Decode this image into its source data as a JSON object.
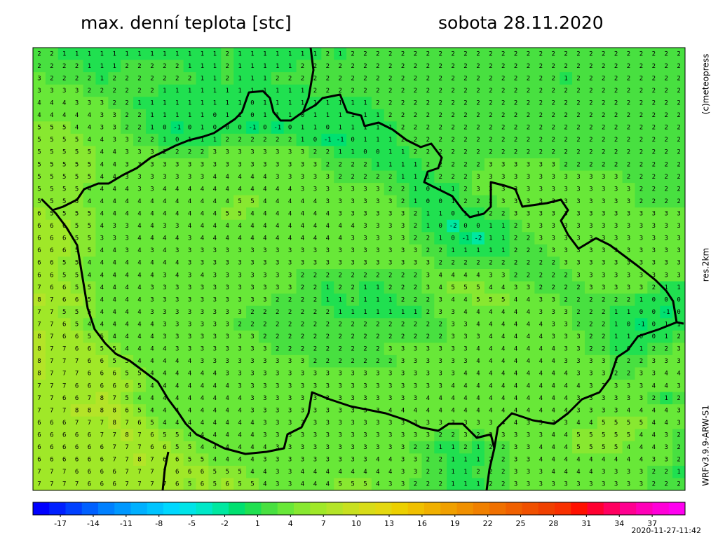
{
  "header": {
    "title": "max. denní teplota [stc]",
    "date": "sobota 28.11.2020"
  },
  "side_labels": {
    "copyright": "(c)meteopress",
    "resolution": "res.2km",
    "model": "WRFv3.9.9-ARW-S1"
  },
  "timestamp": "2020-11-27-11:42",
  "colorbar": {
    "lim": [
      -19.5,
      40
    ],
    "ticks": [
      -17,
      -14,
      -11,
      -8,
      -5,
      -2,
      1,
      4,
      7,
      10,
      13,
      16,
      19,
      22,
      25,
      28,
      31,
      34,
      37
    ],
    "colors": [
      "#0000ff",
      "#0020ff",
      "#0040ff",
      "#0060ff",
      "#0080ff",
      "#0098ff",
      "#00b0ff",
      "#00c4ff",
      "#00d8ff",
      "#00e4e8",
      "#00e8c8",
      "#00e8a0",
      "#00e070",
      "#20e050",
      "#48e040",
      "#68e838",
      "#88e830",
      "#a0e828",
      "#b4e428",
      "#c8e020",
      "#d8dc18",
      "#e4d810",
      "#ecd000",
      "#f0c000",
      "#f0b000",
      "#f0a000",
      "#f09000",
      "#f08000",
      "#f07000",
      "#f06000",
      "#f05000",
      "#f04000",
      "#f83000",
      "#ff1000",
      "#ff0030",
      "#ff0060",
      "#ff0090",
      "#ff00b8",
      "#ff00d8",
      "#ff00f0"
    ]
  },
  "grid": [
    [
      2,
      2,
      1,
      1,
      1,
      1,
      1,
      1,
      1,
      1,
      1,
      1,
      1,
      1,
      1,
      2,
      1,
      1,
      1,
      1,
      1,
      1,
      1,
      2,
      1,
      2,
      2,
      2,
      2,
      2,
      2,
      2,
      2,
      2,
      2,
      2,
      2,
      2,
      2,
      2,
      2,
      2,
      2,
      2,
      2,
      2,
      2,
      2,
      2,
      2,
      2,
      2
    ],
    [
      2,
      2,
      2,
      2,
      1,
      1,
      1,
      2,
      2,
      2,
      2,
      2,
      1,
      1,
      1,
      2,
      1,
      1,
      1,
      1,
      1,
      2,
      2,
      2,
      2,
      2,
      2,
      2,
      2,
      2,
      2,
      2,
      2,
      2,
      2,
      2,
      2,
      2,
      2,
      2,
      2,
      2,
      2,
      2,
      2,
      2,
      2,
      2,
      2,
      2,
      2,
      2
    ],
    [
      3,
      2,
      2,
      2,
      2,
      1,
      2,
      2,
      2,
      2,
      2,
      2,
      2,
      1,
      1,
      2,
      1,
      1,
      1,
      2,
      2,
      2,
      2,
      2,
      2,
      2,
      2,
      2,
      2,
      2,
      2,
      2,
      2,
      2,
      2,
      2,
      2,
      2,
      2,
      2,
      2,
      2,
      1,
      2,
      2,
      2,
      2,
      2,
      2,
      2,
      2,
      2
    ],
    [
      3,
      3,
      3,
      3,
      2,
      2,
      2,
      2,
      2,
      2,
      1,
      1,
      1,
      1,
      1,
      1,
      1,
      1,
      1,
      1,
      1,
      1,
      2,
      2,
      2,
      2,
      2,
      2,
      2,
      2,
      2,
      2,
      2,
      2,
      2,
      2,
      2,
      2,
      2,
      2,
      2,
      2,
      2,
      2,
      2,
      2,
      2,
      2,
      2,
      2,
      2,
      2
    ],
    [
      4,
      4,
      4,
      3,
      3,
      3,
      2,
      2,
      1,
      1,
      1,
      1,
      1,
      1,
      1,
      1,
      1,
      0,
      1,
      1,
      1,
      1,
      1,
      1,
      1,
      1,
      1,
      2,
      2,
      2,
      2,
      2,
      2,
      2,
      2,
      2,
      2,
      2,
      2,
      2,
      2,
      2,
      2,
      2,
      2,
      2,
      2,
      2,
      2,
      2,
      2,
      2
    ],
    [
      4,
      4,
      4,
      4,
      4,
      3,
      3,
      2,
      2,
      1,
      1,
      1,
      1,
      1,
      0,
      1,
      1,
      0,
      1,
      1,
      1,
      0,
      1,
      1,
      1,
      1,
      1,
      1,
      2,
      2,
      2,
      2,
      2,
      2,
      2,
      2,
      2,
      2,
      2,
      2,
      2,
      2,
      2,
      2,
      2,
      2,
      2,
      2,
      2,
      2,
      2,
      2
    ],
    [
      5,
      5,
      5,
      4,
      4,
      3,
      3,
      2,
      2,
      1,
      0,
      -1,
      0,
      1,
      0,
      0,
      0,
      -1,
      0,
      -1,
      0,
      1,
      1,
      0,
      1,
      1,
      1,
      1,
      1,
      2,
      2,
      2,
      2,
      2,
      2,
      2,
      2,
      2,
      2,
      2,
      2,
      2,
      2,
      2,
      2,
      2,
      2,
      2,
      2,
      2,
      2,
      2
    ],
    [
      5,
      5,
      5,
      5,
      4,
      4,
      3,
      3,
      2,
      2,
      1,
      0,
      1,
      1,
      1,
      2,
      2,
      2,
      2,
      2,
      2,
      1,
      0,
      -1,
      -1,
      0,
      1,
      1,
      1,
      2,
      2,
      2,
      2,
      2,
      2,
      2,
      2,
      2,
      2,
      2,
      2,
      2,
      2,
      2,
      2,
      2,
      2,
      2,
      2,
      2,
      2,
      2
    ],
    [
      5,
      5,
      5,
      5,
      5,
      4,
      4,
      3,
      3,
      3,
      2,
      2,
      2,
      2,
      3,
      3,
      3,
      3,
      3,
      3,
      3,
      3,
      2,
      2,
      1,
      1,
      0,
      0,
      1,
      1,
      2,
      2,
      2,
      2,
      2,
      2,
      2,
      2,
      2,
      2,
      2,
      2,
      2,
      2,
      2,
      2,
      2,
      2,
      2,
      2,
      2,
      2
    ],
    [
      5,
      5,
      5,
      5,
      5,
      4,
      4,
      3,
      3,
      3,
      3,
      3,
      3,
      3,
      3,
      3,
      3,
      3,
      3,
      3,
      3,
      3,
      3,
      2,
      2,
      2,
      2,
      1,
      1,
      1,
      1,
      2,
      2,
      2,
      2,
      2,
      3,
      3,
      3,
      3,
      3,
      3,
      2,
      2,
      2,
      2,
      2,
      2,
      2,
      2,
      2,
      2
    ],
    [
      5,
      5,
      5,
      5,
      5,
      4,
      4,
      3,
      3,
      3,
      3,
      3,
      3,
      3,
      4,
      4,
      4,
      4,
      4,
      3,
      3,
      3,
      3,
      3,
      2,
      2,
      2,
      2,
      2,
      1,
      1,
      1,
      2,
      2,
      2,
      3,
      3,
      3,
      3,
      3,
      3,
      3,
      3,
      3,
      3,
      3,
      3,
      2,
      2,
      2,
      2,
      2
    ],
    [
      5,
      5,
      5,
      5,
      4,
      4,
      4,
      4,
      3,
      3,
      4,
      4,
      4,
      4,
      4,
      4,
      4,
      4,
      4,
      4,
      4,
      3,
      3,
      3,
      3,
      3,
      3,
      3,
      2,
      2,
      1,
      0,
      1,
      1,
      2,
      3,
      3,
      3,
      3,
      3,
      3,
      3,
      3,
      3,
      3,
      3,
      3,
      3,
      2,
      2,
      2,
      2
    ],
    [
      5,
      5,
      5,
      5,
      4,
      4,
      4,
      4,
      4,
      4,
      4,
      4,
      4,
      4,
      4,
      4,
      5,
      5,
      4,
      4,
      4,
      4,
      4,
      3,
      3,
      3,
      3,
      3,
      3,
      2,
      1,
      0,
      0,
      1,
      2,
      2,
      2,
      3,
      3,
      3,
      3,
      3,
      3,
      3,
      3,
      3,
      3,
      3,
      2,
      2,
      2,
      2
    ],
    [
      6,
      5,
      5,
      5,
      5,
      4,
      4,
      4,
      4,
      4,
      4,
      4,
      4,
      4,
      4,
      5,
      5,
      4,
      4,
      4,
      4,
      4,
      4,
      4,
      3,
      3,
      3,
      3,
      3,
      3,
      2,
      1,
      1,
      0,
      1,
      1,
      2,
      2,
      3,
      3,
      3,
      3,
      3,
      3,
      3,
      3,
      3,
      3,
      3,
      3,
      3,
      3
    ],
    [
      6,
      6,
      6,
      5,
      5,
      4,
      3,
      3,
      4,
      4,
      3,
      3,
      4,
      4,
      4,
      4,
      4,
      4,
      4,
      4,
      4,
      4,
      4,
      4,
      4,
      4,
      3,
      3,
      3,
      3,
      2,
      1,
      0,
      -2,
      0,
      0,
      1,
      1,
      2,
      3,
      3,
      3,
      3,
      3,
      3,
      3,
      3,
      3,
      3,
      3,
      3,
      3
    ],
    [
      6,
      6,
      6,
      5,
      5,
      3,
      3,
      3,
      4,
      4,
      4,
      4,
      3,
      4,
      4,
      4,
      4,
      4,
      4,
      4,
      4,
      4,
      4,
      4,
      4,
      3,
      3,
      3,
      3,
      3,
      2,
      2,
      1,
      0,
      -1,
      -2,
      1,
      1,
      2,
      2,
      3,
      3,
      3,
      3,
      3,
      3,
      3,
      3,
      3,
      3,
      3,
      3
    ],
    [
      6,
      6,
      6,
      5,
      5,
      4,
      4,
      3,
      4,
      3,
      4,
      3,
      3,
      3,
      3,
      3,
      3,
      3,
      3,
      3,
      3,
      3,
      3,
      3,
      3,
      3,
      3,
      3,
      3,
      3,
      3,
      2,
      2,
      1,
      1,
      1,
      1,
      1,
      2,
      2,
      2,
      3,
      3,
      3,
      3,
      3,
      3,
      3,
      3,
      3,
      3,
      3
    ],
    [
      6,
      6,
      5,
      5,
      4,
      4,
      4,
      4,
      4,
      4,
      4,
      4,
      3,
      3,
      3,
      3,
      3,
      3,
      3,
      3,
      3,
      3,
      3,
      3,
      3,
      3,
      3,
      3,
      3,
      3,
      3,
      3,
      2,
      2,
      2,
      2,
      2,
      2,
      2,
      2,
      2,
      2,
      3,
      3,
      3,
      3,
      3,
      3,
      3,
      3,
      3,
      3
    ],
    [
      6,
      6,
      5,
      5,
      4,
      4,
      4,
      4,
      4,
      4,
      3,
      4,
      3,
      4,
      3,
      3,
      3,
      3,
      3,
      3,
      3,
      2,
      2,
      2,
      2,
      2,
      2,
      2,
      2,
      2,
      2,
      3,
      4,
      4,
      4,
      4,
      3,
      3,
      2,
      2,
      2,
      2,
      2,
      3,
      3,
      3,
      3,
      3,
      3,
      3,
      3,
      3
    ],
    [
      7,
      6,
      6,
      5,
      5,
      4,
      4,
      4,
      4,
      3,
      3,
      3,
      3,
      3,
      3,
      3,
      3,
      3,
      3,
      3,
      3,
      2,
      2,
      1,
      2,
      2,
      1,
      1,
      2,
      2,
      2,
      3,
      4,
      5,
      5,
      5,
      4,
      4,
      3,
      3,
      2,
      2,
      2,
      2,
      3,
      3,
      3,
      3,
      3,
      2,
      1,
      1
    ],
    [
      8,
      7,
      6,
      6,
      5,
      4,
      4,
      4,
      4,
      3,
      3,
      3,
      3,
      3,
      3,
      3,
      3,
      3,
      3,
      2,
      2,
      2,
      2,
      1,
      1,
      2,
      1,
      1,
      1,
      2,
      2,
      2,
      3,
      4,
      4,
      5,
      5,
      5,
      4,
      4,
      3,
      3,
      2,
      2,
      2,
      2,
      2,
      2,
      1,
      0,
      0,
      0
    ],
    [
      7,
      7,
      5,
      5,
      5,
      4,
      4,
      4,
      4,
      3,
      3,
      3,
      3,
      3,
      3,
      3,
      3,
      2,
      2,
      2,
      2,
      2,
      2,
      2,
      1,
      1,
      1,
      1,
      1,
      1,
      1,
      2,
      3,
      3,
      4,
      4,
      4,
      4,
      4,
      4,
      3,
      3,
      3,
      2,
      2,
      2,
      1,
      1,
      0,
      0,
      -1,
      0
    ],
    [
      7,
      7,
      6,
      5,
      4,
      4,
      4,
      4,
      4,
      4,
      3,
      3,
      3,
      3,
      3,
      3,
      2,
      2,
      2,
      2,
      2,
      2,
      2,
      2,
      2,
      2,
      2,
      2,
      2,
      2,
      2,
      2,
      2,
      3,
      3,
      4,
      4,
      4,
      4,
      4,
      4,
      3,
      3,
      2,
      2,
      2,
      1,
      0,
      -1,
      0,
      1,
      1
    ],
    [
      8,
      7,
      6,
      6,
      5,
      5,
      4,
      4,
      4,
      4,
      3,
      3,
      3,
      3,
      3,
      3,
      3,
      3,
      2,
      2,
      2,
      2,
      2,
      2,
      2,
      2,
      2,
      2,
      2,
      2,
      2,
      2,
      2,
      3,
      3,
      3,
      4,
      4,
      4,
      4,
      4,
      3,
      3,
      3,
      2,
      2,
      1,
      1,
      0,
      0,
      1,
      2
    ],
    [
      8,
      7,
      7,
      6,
      6,
      5,
      5,
      4,
      4,
      4,
      4,
      3,
      3,
      3,
      3,
      3,
      3,
      3,
      3,
      2,
      2,
      2,
      2,
      2,
      2,
      2,
      2,
      2,
      3,
      3,
      3,
      3,
      3,
      3,
      3,
      4,
      4,
      4,
      4,
      4,
      4,
      4,
      3,
      3,
      2,
      2,
      1,
      0,
      1,
      2,
      2,
      3
    ],
    [
      8,
      7,
      7,
      7,
      6,
      6,
      5,
      5,
      4,
      4,
      4,
      4,
      4,
      3,
      3,
      3,
      3,
      3,
      3,
      3,
      3,
      3,
      2,
      2,
      2,
      2,
      2,
      2,
      2,
      3,
      3,
      3,
      3,
      3,
      3,
      4,
      4,
      4,
      4,
      4,
      4,
      4,
      3,
      3,
      3,
      3,
      2,
      2,
      2,
      3,
      3,
      3
    ],
    [
      8,
      7,
      7,
      7,
      6,
      6,
      6,
      5,
      5,
      4,
      4,
      4,
      4,
      4,
      4,
      3,
      3,
      3,
      3,
      3,
      3,
      3,
      3,
      3,
      3,
      3,
      3,
      3,
      3,
      3,
      3,
      3,
      3,
      3,
      4,
      4,
      4,
      4,
      4,
      4,
      4,
      4,
      4,
      3,
      3,
      3,
      2,
      2,
      3,
      3,
      4,
      4
    ],
    [
      7,
      7,
      7,
      6,
      6,
      6,
      6,
      6,
      5,
      4,
      4,
      4,
      4,
      4,
      4,
      4,
      3,
      3,
      3,
      3,
      3,
      3,
      3,
      3,
      3,
      3,
      3,
      3,
      3,
      3,
      3,
      3,
      3,
      4,
      4,
      4,
      4,
      4,
      4,
      4,
      4,
      4,
      4,
      4,
      3,
      3,
      3,
      3,
      3,
      4,
      4,
      3
    ],
    [
      7,
      7,
      6,
      6,
      7,
      8,
      7,
      5,
      4,
      4,
      4,
      4,
      4,
      4,
      4,
      4,
      4,
      3,
      3,
      3,
      3,
      3,
      3,
      3,
      3,
      3,
      3,
      3,
      3,
      3,
      3,
      4,
      4,
      4,
      4,
      4,
      4,
      4,
      4,
      4,
      4,
      4,
      4,
      3,
      3,
      3,
      3,
      3,
      3,
      2,
      1,
      2
    ],
    [
      7,
      7,
      7,
      8,
      8,
      8,
      8,
      6,
      5,
      4,
      4,
      4,
      4,
      4,
      4,
      4,
      4,
      3,
      3,
      3,
      3,
      3,
      3,
      3,
      3,
      3,
      3,
      3,
      4,
      4,
      4,
      4,
      4,
      4,
      4,
      4,
      4,
      4,
      4,
      4,
      4,
      4,
      4,
      3,
      3,
      3,
      3,
      4,
      4,
      4,
      4,
      3
    ],
    [
      6,
      6,
      6,
      7,
      7,
      7,
      8,
      7,
      6,
      5,
      4,
      4,
      4,
      4,
      4,
      4,
      4,
      4,
      3,
      3,
      3,
      3,
      3,
      3,
      3,
      3,
      3,
      3,
      3,
      3,
      3,
      3,
      3,
      3,
      3,
      3,
      3,
      4,
      4,
      3,
      3,
      3,
      3,
      4,
      4,
      5,
      5,
      5,
      5,
      4,
      4,
      3
    ],
    [
      6,
      6,
      6,
      6,
      6,
      7,
      7,
      8,
      7,
      6,
      5,
      5,
      4,
      4,
      4,
      4,
      4,
      4,
      3,
      3,
      3,
      3,
      3,
      3,
      3,
      3,
      3,
      3,
      3,
      3,
      3,
      3,
      2,
      2,
      3,
      2,
      3,
      3,
      3,
      3,
      3,
      4,
      4,
      5,
      5,
      5,
      5,
      5,
      4,
      4,
      3,
      2
    ],
    [
      6,
      6,
      6,
      6,
      6,
      6,
      7,
      7,
      7,
      6,
      6,
      5,
      5,
      4,
      4,
      4,
      4,
      4,
      4,
      3,
      3,
      3,
      3,
      3,
      3,
      3,
      3,
      3,
      3,
      3,
      2,
      2,
      1,
      1,
      2,
      1,
      2,
      2,
      3,
      3,
      4,
      4,
      4,
      5,
      5,
      5,
      5,
      4,
      4,
      4,
      3,
      2
    ],
    [
      6,
      6,
      6,
      6,
      6,
      6,
      7,
      7,
      8,
      7,
      6,
      6,
      5,
      5,
      4,
      4,
      4,
      4,
      3,
      3,
      3,
      3,
      3,
      3,
      3,
      3,
      3,
      4,
      4,
      3,
      3,
      2,
      2,
      1,
      1,
      1,
      2,
      2,
      3,
      3,
      4,
      4,
      4,
      4,
      4,
      4,
      4,
      4,
      4,
      3,
      3,
      2
    ],
    [
      7,
      7,
      7,
      6,
      6,
      6,
      6,
      7,
      7,
      7,
      7,
      6,
      6,
      6,
      5,
      5,
      5,
      4,
      4,
      3,
      3,
      4,
      4,
      4,
      4,
      4,
      4,
      4,
      4,
      3,
      3,
      2,
      2,
      1,
      1,
      2,
      2,
      2,
      3,
      3,
      3,
      4,
      4,
      4,
      4,
      3,
      3,
      3,
      3,
      2,
      2,
      1
    ],
    [
      7,
      7,
      7,
      7,
      6,
      6,
      6,
      7,
      7,
      7,
      7,
      6,
      5,
      6,
      5,
      6,
      5,
      5,
      4,
      3,
      3,
      4,
      4,
      4,
      5,
      5,
      5,
      4,
      3,
      3,
      2,
      2,
      2,
      1,
      1,
      1,
      2,
      2,
      3,
      3,
      3,
      3,
      3,
      3,
      3,
      3,
      3,
      3,
      3,
      2,
      2,
      2
    ]
  ]
}
